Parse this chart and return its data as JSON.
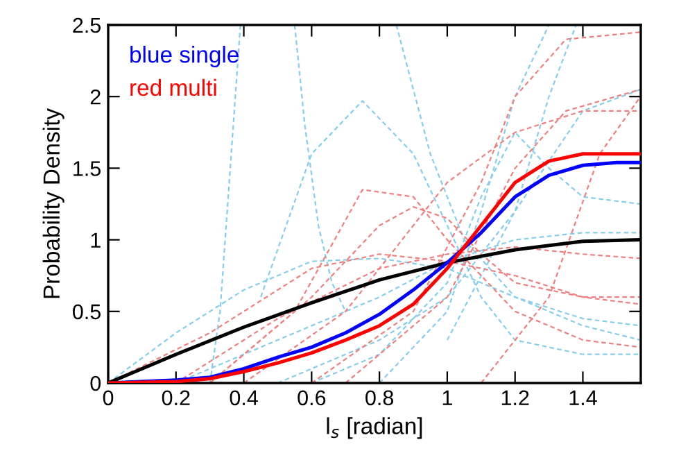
{
  "chart_data": {
    "type": "line",
    "xlabel": "l$_{s}$ [radian]",
    "ylabel": "Probability Density",
    "xlim": [
      0,
      1.5708
    ],
    "xticks": [
      0,
      0.2,
      0.4,
      0.6,
      0.8,
      1,
      1.2,
      1.4
    ],
    "ylim": [
      0,
      2.5
    ],
    "yticks": [
      0,
      0.5,
      1,
      1.5,
      2,
      2.5
    ],
    "grid": false,
    "legend": "top left",
    "marker": "none",
    "series": [
      {
        "color": "#87ceeb",
        "line_style": "dashed",
        "x": [
          0.3,
          0.33,
          0.36,
          0.39
        ],
        "values": [
          0,
          0.5,
          1.5,
          2.5
        ]
      },
      {
        "color": "#87ceeb",
        "line_style": "dashed",
        "x": [
          0.55,
          0.58,
          0.62,
          0.66,
          0.7
        ],
        "values": [
          2.5,
          1.8,
          1.1,
          0.7,
          0.5
        ]
      },
      {
        "color": "#87ceeb",
        "line_style": "dashed",
        "x": [
          0.45,
          0.6,
          0.75,
          0.9,
          1.0,
          1.1,
          1.2,
          1.4,
          1.57
        ],
        "values": [
          0.6,
          1.6,
          1.97,
          1.6,
          1.1,
          0.6,
          0.3,
          0.2,
          0.2
        ]
      },
      {
        "color": "#87ceeb",
        "line_style": "dashed",
        "x": [
          0,
          0.2,
          0.4,
          0.6,
          0.8,
          1.0,
          1.2,
          1.4,
          1.57
        ],
        "values": [
          0,
          0.35,
          0.65,
          0.85,
          0.87,
          0.8,
          0.6,
          0.4,
          0.3
        ]
      },
      {
        "color": "#87ceeb",
        "line_style": "dashed",
        "x": [
          0.8,
          1.0,
          1.1,
          1.2,
          1.3
        ],
        "values": [
          0,
          0.5,
          1.2,
          2.0,
          2.5
        ]
      },
      {
        "color": "#87ceeb",
        "line_style": "dashed",
        "x": [
          0.6,
          0.8,
          1.0,
          1.1,
          1.2,
          1.3,
          1.4,
          1.57
        ],
        "values": [
          0,
          0.2,
          0.7,
          1.3,
          1.75,
          1.5,
          1.3,
          1.25
        ]
      },
      {
        "color": "#87ceeb",
        "line_style": "dashed",
        "x": [
          0.2,
          0.5,
          0.8,
          1.0,
          1.2,
          1.4,
          1.57
        ],
        "values": [
          0,
          0.3,
          0.6,
          0.85,
          1.0,
          1.05,
          1.05
        ]
      },
      {
        "color": "#87ceeb",
        "line_style": "dashed",
        "x": [
          0.85,
          0.95,
          1.05,
          1.2,
          1.4,
          1.57
        ],
        "values": [
          2.5,
          1.6,
          1.0,
          0.6,
          0.45,
          0.4
        ]
      },
      {
        "color": "#87ceeb",
        "line_style": "dashed",
        "x": [
          1.0,
          1.2,
          1.3,
          1.38
        ],
        "values": [
          0.3,
          1.2,
          2.0,
          2.5
        ]
      },
      {
        "color": "#87ceeb",
        "line_style": "dashed",
        "x": [
          0.5,
          0.8,
          1.0,
          1.2,
          1.4,
          1.57
        ],
        "values": [
          0,
          0.3,
          0.6,
          1.2,
          1.9,
          2.05
        ]
      },
      {
        "color": "#f08080",
        "line_style": "dashed",
        "x": [
          0,
          0.3,
          0.6,
          0.8,
          1.0,
          1.2,
          1.4,
          1.57
        ],
        "values": [
          0,
          0.35,
          0.8,
          0.9,
          0.85,
          0.75,
          0.6,
          0.55
        ]
      },
      {
        "color": "#f08080",
        "line_style": "dashed",
        "x": [
          0.3,
          0.6,
          0.8,
          0.9,
          1.0,
          1.1,
          1.2,
          1.4,
          1.57
        ],
        "values": [
          0,
          0.6,
          1.1,
          1.23,
          1.15,
          0.9,
          0.7,
          0.6,
          0.6
        ]
      },
      {
        "color": "#f08080",
        "line_style": "dashed",
        "x": [
          0.4,
          0.7,
          0.9,
          1.0,
          1.2,
          1.4,
          1.57
        ],
        "values": [
          0,
          0.5,
          1.1,
          1.4,
          1.75,
          1.9,
          1.9
        ]
      },
      {
        "color": "#f08080",
        "line_style": "dashed",
        "x": [
          0.6,
          0.9,
          1.1,
          1.2,
          1.35,
          1.57
        ],
        "values": [
          0,
          0.5,
          1.4,
          2.0,
          2.4,
          2.45
        ]
      },
      {
        "color": "#f08080",
        "line_style": "dashed",
        "x": [
          0.2,
          0.5,
          0.8,
          1.0,
          1.2,
          1.4,
          1.57
        ],
        "values": [
          0,
          0.45,
          0.8,
          0.9,
          0.95,
          0.9,
          0.87
        ]
      },
      {
        "color": "#f08080",
        "line_style": "dashed",
        "x": [
          0.7,
          1.0,
          1.2,
          1.35,
          1.57
        ],
        "values": [
          0,
          0.6,
          1.5,
          1.9,
          2.05
        ]
      },
      {
        "color": "#f08080",
        "line_style": "dashed",
        "x": [
          1.1,
          1.3,
          1.45,
          1.57
        ],
        "values": [
          0,
          0.6,
          1.6,
          2.0
        ]
      },
      {
        "color": "#f08080",
        "line_style": "dashed",
        "x": [
          0.3,
          0.55,
          0.75,
          0.9,
          1.0,
          1.2,
          1.4,
          1.57
        ],
        "values": [
          0,
          0.5,
          1.35,
          1.3,
          1.0,
          0.5,
          0.3,
          0.25
        ]
      },
      {
        "color": "#000000",
        "line_style": "solid",
        "x": [
          0,
          0.2,
          0.4,
          0.6,
          0.8,
          1.0,
          1.2,
          1.4,
          1.5708
        ],
        "values": [
          0,
          0.2,
          0.39,
          0.56,
          0.72,
          0.84,
          0.93,
          0.99,
          1.0
        ]
      },
      {
        "name": "blue single",
        "color": "#0000ff",
        "line_style": "solid",
        "x": [
          0,
          0.2,
          0.3,
          0.4,
          0.5,
          0.6,
          0.7,
          0.8,
          0.9,
          1.0,
          1.1,
          1.2,
          1.3,
          1.4,
          1.5,
          1.5708
        ],
        "values": [
          0,
          0.02,
          0.04,
          0.1,
          0.18,
          0.25,
          0.35,
          0.48,
          0.65,
          0.84,
          1.05,
          1.3,
          1.45,
          1.52,
          1.54,
          1.54
        ]
      },
      {
        "name": "red multi",
        "color": "#ff0000",
        "line_style": "solid",
        "x": [
          0,
          0.2,
          0.3,
          0.4,
          0.5,
          0.6,
          0.7,
          0.8,
          0.9,
          1.0,
          1.1,
          1.2,
          1.3,
          1.4,
          1.5,
          1.5708
        ],
        "values": [
          0,
          0.01,
          0.03,
          0.08,
          0.14,
          0.21,
          0.3,
          0.4,
          0.55,
          0.8,
          1.1,
          1.4,
          1.55,
          1.6,
          1.6,
          1.6
        ]
      }
    ]
  }
}
